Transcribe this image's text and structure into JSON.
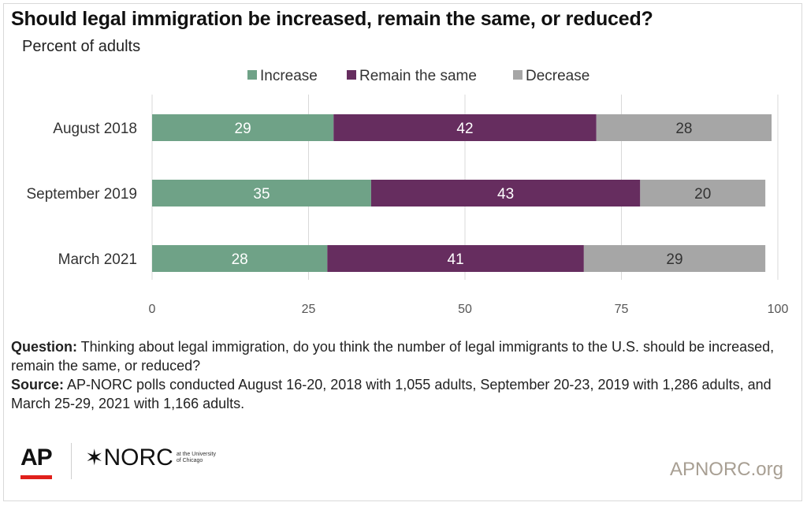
{
  "title": "Should legal immigration be increased, remain the same, or reduced?",
  "subtitle": "Percent of adults",
  "colors": {
    "increase": "#6fa287",
    "same": "#662d5f",
    "decrease": "#a6a6a6",
    "grid": "#d9d9d9",
    "axis_text": "#555555"
  },
  "chart_data": {
    "type": "bar",
    "orientation": "horizontal",
    "stacked": true,
    "categories": [
      "August 2018",
      "September 2019",
      "March 2021"
    ],
    "series": [
      {
        "name": "Increase",
        "values": [
          29,
          35,
          28
        ]
      },
      {
        "name": "Remain the same",
        "values": [
          42,
          43,
          41
        ]
      },
      {
        "name": "Decrease",
        "values": [
          28,
          20,
          29
        ]
      }
    ],
    "xlim": [
      0,
      100
    ],
    "xticks": [
      0,
      25,
      50,
      75,
      100
    ],
    "grid": true,
    "legend": "top"
  },
  "notes": {
    "question_label": "Question:",
    "question_text": " Thinking about legal immigration, do you think the number of legal immigrants to the U.S. should be increased, remain the same, or reduced?",
    "source_label": "Source:",
    "source_text": " AP-NORC polls conducted August 16-20, 2018 with 1,055 adults, September 20-23, 2019 with 1,286 adults, and March 25-29, 2021 with 1,166 adults."
  },
  "footer": {
    "ap_logo": "AP",
    "norc_logo": "NORC",
    "norc_sub": "at the University of Chicago",
    "site": "APNORC.org"
  }
}
